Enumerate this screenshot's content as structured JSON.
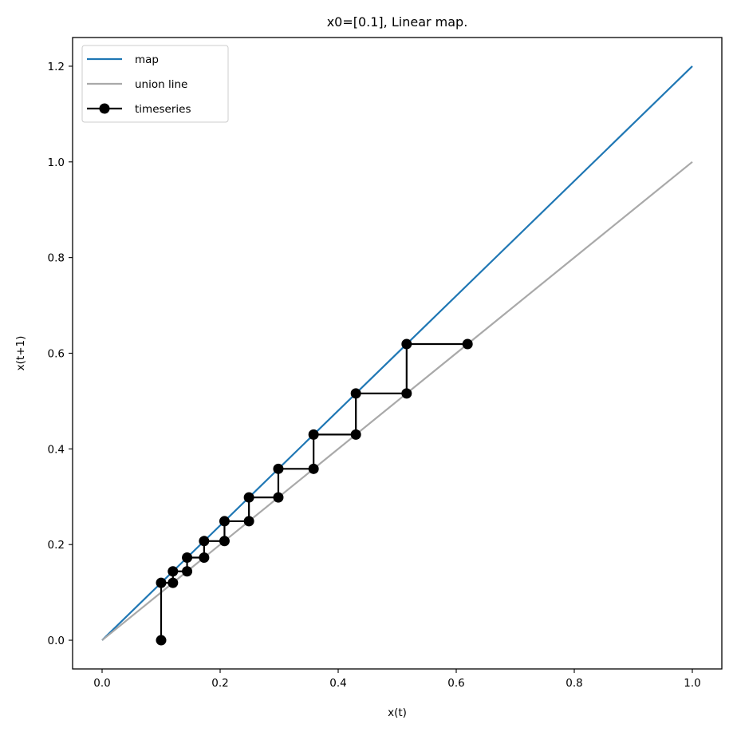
{
  "chart_data": {
    "type": "line",
    "title": "x0=[0.1],  Linear map.",
    "xlabel": "x(t)",
    "ylabel": "x(t+1)",
    "xlim": [
      -0.05,
      1.05
    ],
    "ylim": [
      -0.06,
      1.26
    ],
    "xticks": [
      0.0,
      0.2,
      0.4,
      0.6,
      0.8,
      1.0
    ],
    "xtick_labels": [
      "0.0",
      "0.2",
      "0.4",
      "0.6",
      "0.8",
      "1.0"
    ],
    "yticks": [
      0.0,
      0.2,
      0.4,
      0.6,
      0.8,
      1.0,
      1.2
    ],
    "ytick_labels": [
      "0.0",
      "0.2",
      "0.4",
      "0.6",
      "0.8",
      "1.0",
      "1.2"
    ],
    "grid": false,
    "legend_position": "upper left",
    "series": [
      {
        "name": "map",
        "color": "#1f77b4",
        "marker": "none",
        "x": [
          0.0,
          1.0
        ],
        "y": [
          0.0,
          1.2
        ]
      },
      {
        "name": "union line",
        "color": "#a9a9a9",
        "marker": "none",
        "x": [
          0.0,
          1.0
        ],
        "y": [
          0.0,
          1.0
        ]
      },
      {
        "name": "timeseries",
        "color": "#000000",
        "marker": "circle",
        "x": [
          0.1,
          0.1,
          0.12,
          0.12,
          0.144,
          0.144,
          0.1728,
          0.1728,
          0.20736,
          0.20736,
          0.248832,
          0.248832,
          0.2985984,
          0.2985984,
          0.35831808,
          0.35831808,
          0.429981696,
          0.429981696,
          0.5159780352,
          0.5159780352,
          0.6191736422
        ],
        "y": [
          0.0,
          0.12,
          0.12,
          0.144,
          0.144,
          0.1728,
          0.1728,
          0.20736,
          0.20736,
          0.248832,
          0.248832,
          0.2985984,
          0.2985984,
          0.35831808,
          0.35831808,
          0.429981696,
          0.429981696,
          0.5159780352,
          0.5159780352,
          0.6191736422,
          0.6191736422
        ]
      }
    ]
  }
}
